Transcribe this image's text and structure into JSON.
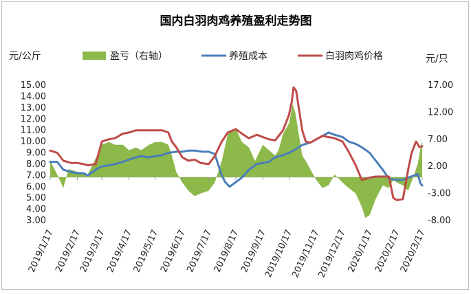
{
  "chart_data": {
    "type": "line",
    "title": "国内白羽肉鸡养殖盈利走势图",
    "ylabel_left": "元/公斤",
    "ylabel_right": "元/只",
    "legend": [
      "盈亏（右轴）",
      "养殖成本",
      "白羽肉鸡价格"
    ],
    "legend_position": "top",
    "left_axis": {
      "min": 3,
      "max": 15,
      "step": 1,
      "ticks": [
        "3.00",
        "4.00",
        "5.00",
        "6.00",
        "7.00",
        "8.00",
        "9.00",
        "10.00",
        "11.00",
        "12.00",
        "13.00",
        "14.00",
        "15.00"
      ]
    },
    "right_axis": {
      "min": -8,
      "max": 17,
      "step": 5,
      "ticks": [
        "-8.00",
        "-3.00",
        "2.00",
        "7.00",
        "12.00",
        "17.00"
      ]
    },
    "x_range": [
      "2019-01-17",
      "2020-03-17"
    ],
    "x_ticks": [
      "2019/1/17",
      "2019/2/17",
      "2019/3/17",
      "2019/4/17",
      "2019/5/17",
      "2019/6/17",
      "2019/7/17",
      "2019/8/17",
      "2019/9/17",
      "2019/10/17",
      "2019/11/17",
      "2019/12/17",
      "2020/1/17",
      "2020/2/17",
      "2020/3/17"
    ],
    "series": [
      {
        "name": "盈亏（右轴）",
        "type": "area",
        "axis": "right",
        "color": "#8db84a",
        "x": [
          "2019-01-17",
          "2019-01-25",
          "2019-02-01",
          "2019-02-07",
          "2019-02-17",
          "2019-02-25",
          "2019-03-01",
          "2019-03-10",
          "2019-03-17",
          "2019-03-25",
          "2019-04-01",
          "2019-04-10",
          "2019-04-17",
          "2019-04-25",
          "2019-05-01",
          "2019-05-10",
          "2019-05-17",
          "2019-05-25",
          "2019-06-01",
          "2019-06-05",
          "2019-06-10",
          "2019-06-17",
          "2019-06-24",
          "2019-07-01",
          "2019-07-08",
          "2019-07-17",
          "2019-07-24",
          "2019-08-01",
          "2019-08-08",
          "2019-08-17",
          "2019-08-24",
          "2019-09-01",
          "2019-09-08",
          "2019-09-17",
          "2019-09-24",
          "2019-10-01",
          "2019-10-05",
          "2019-10-10",
          "2019-10-17",
          "2019-10-21",
          "2019-10-24",
          "2019-10-28",
          "2019-11-01",
          "2019-11-05",
          "2019-11-10",
          "2019-11-17",
          "2019-11-24",
          "2019-12-01",
          "2019-12-08",
          "2019-12-17",
          "2019-12-24",
          "2020-01-01",
          "2020-01-08",
          "2020-01-12",
          "2020-01-17",
          "2020-01-24",
          "2020-02-01",
          "2020-02-08",
          "2020-02-13",
          "2020-02-17",
          "2020-02-24",
          "2020-03-01",
          "2020-03-08",
          "2020-03-12",
          "2020-03-17"
        ],
        "values": [
          3.0,
          0.5,
          -2.0,
          1.5,
          1.0,
          0.8,
          0.5,
          3.5,
          6.0,
          6.5,
          6.0,
          6.0,
          5.0,
          5.5,
          5.0,
          6.0,
          6.5,
          6.5,
          6.0,
          4.0,
          1.0,
          -1.0,
          -2.5,
          -3.5,
          -3.0,
          -2.5,
          -1.0,
          3.0,
          8.0,
          9.0,
          6.5,
          5.5,
          3.0,
          6.0,
          5.0,
          4.0,
          5.0,
          8.0,
          10.0,
          13.5,
          12.0,
          8.0,
          4.0,
          3.0,
          1.5,
          -0.5,
          -2.0,
          -1.5,
          0.5,
          -1.0,
          -2.0,
          -3.0,
          -5.5,
          -7.5,
          -7.0,
          -4.0,
          -1.5,
          -2.0,
          -0.5,
          -1.0,
          -1.5,
          -2.5,
          0.5,
          2.5,
          7.0
        ]
      },
      {
        "name": "养殖成本",
        "type": "line",
        "axis": "left",
        "color": "#4a7ebb",
        "x": [
          "2019-01-17",
          "2019-01-25",
          "2019-02-01",
          "2019-02-10",
          "2019-02-17",
          "2019-02-24",
          "2019-03-01",
          "2019-03-10",
          "2019-03-17",
          "2019-03-25",
          "2019-04-01",
          "2019-04-10",
          "2019-04-17",
          "2019-04-25",
          "2019-05-01",
          "2019-05-10",
          "2019-05-17",
          "2019-05-25",
          "2019-06-01",
          "2019-06-10",
          "2019-06-17",
          "2019-06-24",
          "2019-07-01",
          "2019-07-10",
          "2019-07-17",
          "2019-07-24",
          "2019-08-01",
          "2019-08-05",
          "2019-08-10",
          "2019-08-17",
          "2019-08-24",
          "2019-09-01",
          "2019-09-10",
          "2019-09-17",
          "2019-09-24",
          "2019-10-01",
          "2019-10-10",
          "2019-10-17",
          "2019-10-24",
          "2019-11-01",
          "2019-11-10",
          "2019-11-17",
          "2019-11-24",
          "2019-12-01",
          "2019-12-08",
          "2019-12-17",
          "2019-12-24",
          "2020-01-01",
          "2020-01-08",
          "2020-01-17",
          "2020-01-24",
          "2020-02-01",
          "2020-02-08",
          "2020-02-17",
          "2020-02-24",
          "2020-03-01",
          "2020-03-08",
          "2020-03-12",
          "2020-03-15",
          "2020-03-17"
        ],
        "values": [
          8.2,
          8.2,
          7.5,
          7.3,
          7.2,
          7.2,
          7.0,
          7.5,
          7.8,
          7.9,
          8.0,
          8.2,
          8.4,
          8.6,
          8.7,
          8.6,
          8.7,
          8.8,
          9.0,
          9.1,
          9.1,
          9.2,
          9.2,
          9.1,
          9.1,
          8.9,
          7.0,
          6.4,
          6.0,
          6.4,
          6.8,
          7.5,
          8.0,
          8.1,
          8.2,
          8.6,
          8.8,
          9.0,
          9.3,
          9.7,
          9.9,
          10.2,
          10.5,
          10.8,
          10.6,
          10.4,
          10.0,
          9.8,
          9.5,
          9.0,
          8.3,
          7.5,
          6.7,
          6.6,
          6.6,
          6.8,
          7.0,
          7.1,
          6.3,
          6.1
        ]
      },
      {
        "name": "白羽肉鸡价格",
        "type": "line",
        "axis": "left",
        "color": "#be4b48",
        "x": [
          "2019-01-17",
          "2019-01-25",
          "2019-02-01",
          "2019-02-10",
          "2019-02-17",
          "2019-02-24",
          "2019-03-01",
          "2019-03-10",
          "2019-03-17",
          "2019-03-25",
          "2019-04-01",
          "2019-04-10",
          "2019-04-17",
          "2019-04-25",
          "2019-05-01",
          "2019-05-10",
          "2019-05-17",
          "2019-05-25",
          "2019-06-01",
          "2019-06-05",
          "2019-06-10",
          "2019-06-17",
          "2019-06-24",
          "2019-07-01",
          "2019-07-08",
          "2019-07-17",
          "2019-07-24",
          "2019-08-01",
          "2019-08-08",
          "2019-08-17",
          "2019-08-24",
          "2019-09-01",
          "2019-09-10",
          "2019-09-17",
          "2019-09-24",
          "2019-10-01",
          "2019-10-10",
          "2019-10-17",
          "2019-10-20",
          "2019-10-22",
          "2019-10-25",
          "2019-10-28",
          "2019-11-01",
          "2019-11-05",
          "2019-11-10",
          "2019-11-17",
          "2019-11-24",
          "2019-12-01",
          "2019-12-08",
          "2019-12-17",
          "2019-12-24",
          "2020-01-01",
          "2020-01-08",
          "2020-01-17",
          "2020-01-24",
          "2020-02-01",
          "2020-02-08",
          "2020-02-13",
          "2020-02-17",
          "2020-02-24",
          "2020-03-01",
          "2020-03-05",
          "2020-03-10",
          "2020-03-14",
          "2020-03-17"
        ],
        "values": [
          9.2,
          9.0,
          8.3,
          8.1,
          8.1,
          8.0,
          7.9,
          8.0,
          10.0,
          10.2,
          10.3,
          10.7,
          10.8,
          11.0,
          11.0,
          11.0,
          11.0,
          11.0,
          10.8,
          10.0,
          9.5,
          8.6,
          8.3,
          8.4,
          8.1,
          8.0,
          8.7,
          10.0,
          10.8,
          11.1,
          10.7,
          10.3,
          10.6,
          10.4,
          10.2,
          10.1,
          11.0,
          12.4,
          13.5,
          14.8,
          14.5,
          13.0,
          11.0,
          10.0,
          9.9,
          10.2,
          10.5,
          10.4,
          10.3,
          10.0,
          9.1,
          7.9,
          6.6,
          6.8,
          6.9,
          6.9,
          6.9,
          5.0,
          4.8,
          4.9,
          7.5,
          9.0,
          10.0,
          9.5,
          9.6
        ]
      }
    ]
  }
}
